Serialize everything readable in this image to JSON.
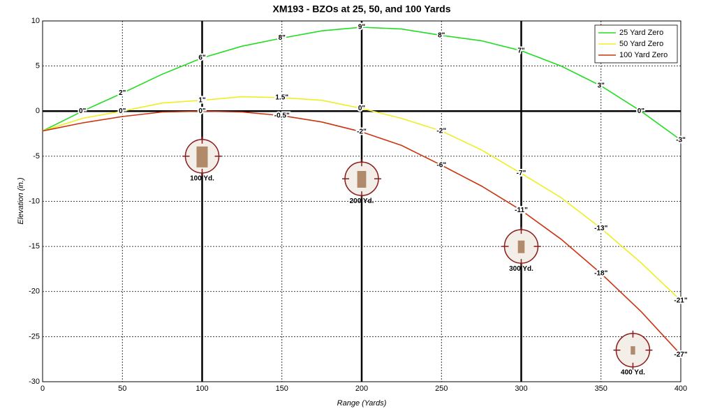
{
  "chart_data": {
    "type": "line",
    "title": "XM193 - BZOs at 25, 50, and 100 Yards",
    "xlabel": "Range (Yards)",
    "ylabel": "Elevation (in.)",
    "x": [
      0,
      25,
      50,
      75,
      100,
      125,
      150,
      175,
      200,
      225,
      250,
      275,
      300,
      325,
      350,
      375,
      400
    ],
    "xlim": [
      0,
      400
    ],
    "ylim": [
      -30,
      10
    ],
    "xticks": [
      0,
      50,
      100,
      150,
      200,
      250,
      300,
      350,
      400
    ],
    "yticks": [
      10,
      5,
      0,
      -5,
      -10,
      -15,
      -20,
      -25,
      -30
    ],
    "grid": true,
    "legend": "upper right",
    "reference_lines": {
      "x": [
        100,
        200,
        300
      ],
      "y": [
        0
      ]
    },
    "series": [
      {
        "name": "25 Yard Zero",
        "color": "#22dd22",
        "values": [
          -2.2,
          0,
          2,
          4.1,
          5.9,
          7.2,
          8.1,
          8.9,
          9.3,
          9.1,
          8.4,
          7.8,
          6.7,
          5,
          2.8,
          0,
          -3.2
        ],
        "value_labels": [
          null,
          "0\"",
          "2\"",
          null,
          "6\"",
          null,
          "8\"",
          null,
          "9\"",
          null,
          "8\"",
          null,
          "7\"",
          null,
          "3\"",
          "0\"",
          "-3\""
        ]
      },
      {
        "name": "50 Yard Zero",
        "color": "#eeee22",
        "values": [
          -2.2,
          -0.8,
          0,
          0.9,
          1.2,
          1.6,
          1.5,
          1.2,
          0.3,
          -0.8,
          -2.2,
          -4.3,
          -6.9,
          -9.6,
          -13,
          -16.8,
          -21
        ],
        "value_labels": [
          null,
          null,
          "0\"",
          null,
          "1\"",
          null,
          "1.5\"",
          null,
          "0\"",
          null,
          "-2\"",
          null,
          "-7\"",
          null,
          "-13\"",
          null,
          "-21\""
        ]
      },
      {
        "name": "100 Yard Zero",
        "color": "#cc3311",
        "values": [
          -2.2,
          -1.3,
          -0.6,
          -0.1,
          0,
          -0.1,
          -0.5,
          -1.2,
          -2.3,
          -3.8,
          -6,
          -8.3,
          -11,
          -14.2,
          -18,
          -22.2,
          -27
        ],
        "value_labels": [
          null,
          null,
          null,
          null,
          "0\"",
          null,
          "-0.5\"",
          null,
          "-2\"",
          null,
          "-6\"",
          null,
          "-11\"",
          null,
          "-18\"",
          null,
          "-27\""
        ]
      }
    ],
    "annotations": [
      {
        "text": "100 Yd.",
        "x": 100,
        "y": -5
      },
      {
        "text": "200 Yd.",
        "x": 200,
        "y": -7.5
      },
      {
        "text": "300 Yd.",
        "x": 300,
        "y": -15
      },
      {
        "text": "400 Yd.",
        "x": 370,
        "y": -26.5
      }
    ]
  }
}
